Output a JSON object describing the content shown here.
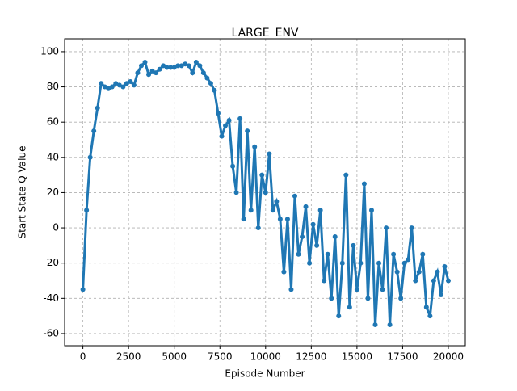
{
  "chart_data": {
    "type": "line",
    "title": "LARGE_ENV",
    "x_label": "Episode Number",
    "y_label": "Start State Q Value",
    "x": [
      0,
      200,
      400,
      600,
      800,
      1000,
      1200,
      1400,
      1600,
      1800,
      2000,
      2200,
      2400,
      2600,
      2800,
      3000,
      3200,
      3400,
      3600,
      3800,
      4000,
      4200,
      4400,
      4600,
      4800,
      5000,
      5200,
      5400,
      5600,
      5800,
      6000,
      6200,
      6400,
      6600,
      6800,
      7000,
      7200,
      7400,
      7600,
      7800,
      8000,
      8200,
      8400,
      8600,
      8800,
      9000,
      9200,
      9400,
      9600,
      9800,
      10000,
      10200,
      10400,
      10600,
      10800,
      11000,
      11200,
      11400,
      11600,
      11800,
      12000,
      12200,
      12400,
      12600,
      12800,
      13000,
      13200,
      13400,
      13600,
      13800,
      14000,
      14200,
      14400,
      14600,
      14800,
      15000,
      15200,
      15400,
      15600,
      15800,
      16000,
      16200,
      16400,
      16600,
      16800,
      17000,
      17200,
      17400,
      17600,
      17800,
      18000,
      18200,
      18400,
      18600,
      18800,
      19000,
      19200,
      19400,
      19600,
      19800,
      20000
    ],
    "series": [
      {
        "color": "#1f77b4",
        "values": [
          -35,
          10,
          40,
          55,
          68,
          82,
          80,
          79,
          80,
          82,
          81,
          80,
          82,
          83,
          81,
          88,
          92,
          94,
          87,
          89,
          88,
          90,
          92,
          91,
          91,
          91,
          92,
          92,
          93,
          92,
          88,
          94,
          92,
          88,
          85,
          82,
          78,
          65,
          52,
          58,
          61,
          35,
          20,
          62,
          5,
          55,
          10,
          46,
          0,
          30,
          20,
          42,
          10,
          15,
          5,
          -25,
          5,
          -35,
          18,
          -15,
          -5,
          12,
          -20,
          2,
          -10,
          10,
          -30,
          -15,
          -40,
          -5,
          -50,
          -20,
          30,
          -45,
          -10,
          -35,
          -20,
          25,
          -40,
          10,
          -55,
          -20,
          -35,
          0,
          -55,
          -15,
          -25,
          -40,
          -20,
          -18,
          0,
          -30,
          -25,
          -15,
          -45,
          -50,
          -30,
          -25,
          -38,
          -22,
          -30
        ]
      }
    ],
    "xlim": [
      -1000,
      20930
    ],
    "ylim": [
      -66.9,
      107.3
    ],
    "xticks": [
      0,
      2500,
      5000,
      7500,
      10000,
      12500,
      15000,
      17500,
      20000
    ],
    "yticks": [
      -60,
      -40,
      -20,
      0,
      20,
      40,
      60,
      80,
      100
    ],
    "grid": true
  }
}
